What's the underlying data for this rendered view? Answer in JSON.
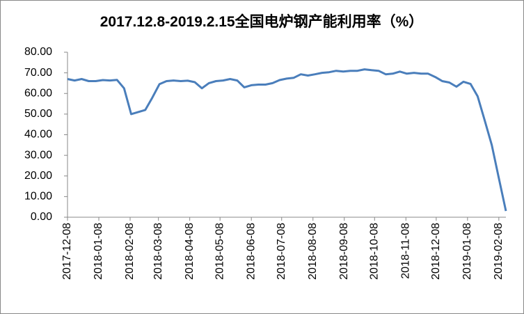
{
  "chart_data": {
    "type": "line",
    "title": "2017.12.8-2019.2.15全国电炉钢产能利用率（%）",
    "x": [
      "2017-12-08",
      "2017-12-15",
      "2017-12-22",
      "2017-12-29",
      "2018-01-05",
      "2018-01-12",
      "2018-01-19",
      "2018-01-26",
      "2018-02-02",
      "2018-02-09",
      "2018-02-16",
      "2018-02-23",
      "2018-03-02",
      "2018-03-09",
      "2018-03-16",
      "2018-03-23",
      "2018-03-30",
      "2018-04-06",
      "2018-04-13",
      "2018-04-20",
      "2018-04-27",
      "2018-05-04",
      "2018-05-11",
      "2018-05-18",
      "2018-05-25",
      "2018-06-01",
      "2018-06-08",
      "2018-06-15",
      "2018-06-22",
      "2018-06-29",
      "2018-07-06",
      "2018-07-13",
      "2018-07-20",
      "2018-07-27",
      "2018-08-03",
      "2018-08-10",
      "2018-08-17",
      "2018-08-24",
      "2018-08-31",
      "2018-09-07",
      "2018-09-14",
      "2018-09-21",
      "2018-09-28",
      "2018-10-05",
      "2018-10-12",
      "2018-10-19",
      "2018-10-26",
      "2018-11-02",
      "2018-11-09",
      "2018-11-16",
      "2018-11-23",
      "2018-11-30",
      "2018-12-07",
      "2018-12-14",
      "2018-12-21",
      "2018-12-28",
      "2019-01-04",
      "2019-01-11",
      "2019-01-18",
      "2019-01-25",
      "2019-02-01",
      "2019-02-08",
      "2019-02-15"
    ],
    "series": [
      {
        "color": "#4a7ebb",
        "values": [
          67.0,
          66.3,
          67.0,
          66.0,
          66.0,
          66.5,
          66.3,
          66.6,
          62.5,
          50.0,
          51.0,
          52.0,
          58.0,
          64.5,
          66.0,
          66.3,
          66.0,
          66.2,
          65.5,
          62.5,
          65.0,
          66.0,
          66.3,
          67.0,
          66.3,
          63.0,
          64.0,
          64.3,
          64.3,
          65.0,
          66.5,
          67.2,
          67.6,
          69.3,
          68.7,
          69.3,
          70.0,
          70.3,
          71.0,
          70.6,
          71.0,
          71.0,
          71.7,
          71.3,
          71.0,
          69.3,
          69.6,
          70.6,
          69.6,
          70.0,
          69.6,
          69.6,
          68.0,
          66.0,
          65.3,
          63.3,
          65.7,
          64.6,
          58.6,
          47.0,
          35.0,
          19.0,
          3.0
        ]
      }
    ],
    "xlim": [
      "2017-12-08",
      "2019-02-15"
    ],
    "xticks": [
      "2017-12-08",
      "2018-01-08",
      "2018-02-08",
      "2018-03-08",
      "2018-04-08",
      "2018-05-08",
      "2018-06-08",
      "2018-07-08",
      "2018-08-08",
      "2018-09-08",
      "2018-10-08",
      "2018-11-08",
      "2018-12-08",
      "2019-01-08",
      "2019-02-08"
    ],
    "ylim": [
      0,
      80
    ],
    "yticks": [
      {
        "value": 0,
        "label": "0.00"
      },
      {
        "value": 10,
        "label": "10.00"
      },
      {
        "value": 20,
        "label": "20.00"
      },
      {
        "value": 30,
        "label": "30.00"
      },
      {
        "value": 40,
        "label": "40.00"
      },
      {
        "value": 50,
        "label": "50.00"
      },
      {
        "value": 60,
        "label": "60.00"
      },
      {
        "value": 70,
        "label": "70.00"
      },
      {
        "value": 80,
        "label": "80.00"
      }
    ],
    "grid": false
  }
}
